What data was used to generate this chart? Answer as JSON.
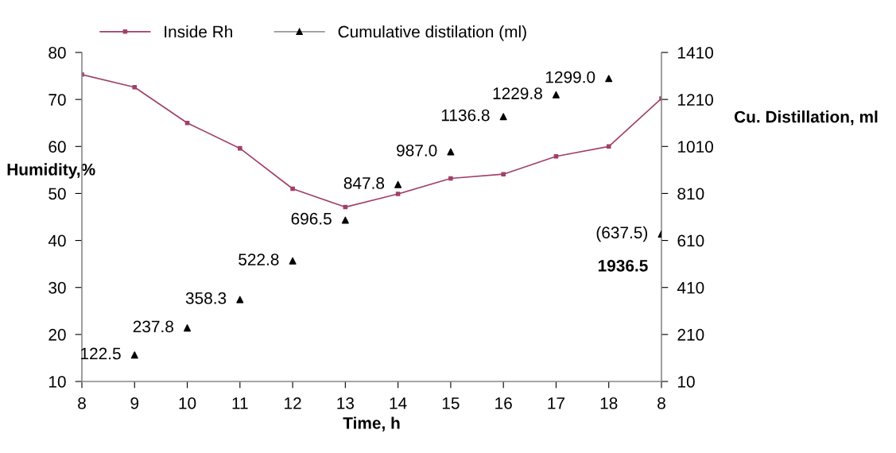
{
  "chart_data": {
    "type": "line",
    "categories": [
      "8",
      "9",
      "10",
      "11",
      "12",
      "13",
      "14",
      "15",
      "16",
      "17",
      "18",
      "8"
    ],
    "xlabel": "Time, h",
    "ylabel": "Humidity,%",
    "y2label": "Cu. Distillation, ml",
    "ylim": [
      10,
      80
    ],
    "yticks": [
      10,
      20,
      30,
      40,
      50,
      60,
      70,
      80
    ],
    "y2lim": [
      10,
      1410
    ],
    "y2ticks": [
      10,
      210,
      410,
      610,
      810,
      1010,
      1210,
      1410
    ],
    "series": [
      {
        "name": "Inside Rh",
        "color": "#a0406a",
        "marker": "square",
        "values": [
          75.3,
          72.6,
          65.0,
          59.6,
          51.0,
          47.1,
          49.9,
          53.2,
          54.1,
          57.9,
          60.0,
          70.2
        ]
      },
      {
        "name": "Cumulative distilation (ml)",
        "type": "scatter",
        "axis": "y2",
        "color": "#000000",
        "marker": "triangle",
        "values": [
          null,
          122.5,
          237.8,
          358.3,
          522.8,
          696.5,
          847.8,
          987.0,
          1136.8,
          1229.8,
          1299.0,
          637.5
        ],
        "value_labels": [
          null,
          "122.5",
          "237.8",
          "358.3",
          "522.8",
          "696.5",
          "847.8",
          "987.0",
          "1136.8",
          "1229.8",
          "1299.0",
          "(637.5)"
        ]
      }
    ],
    "annotations": [
      "1936.5"
    ],
    "legend": "top",
    "grid": false
  }
}
